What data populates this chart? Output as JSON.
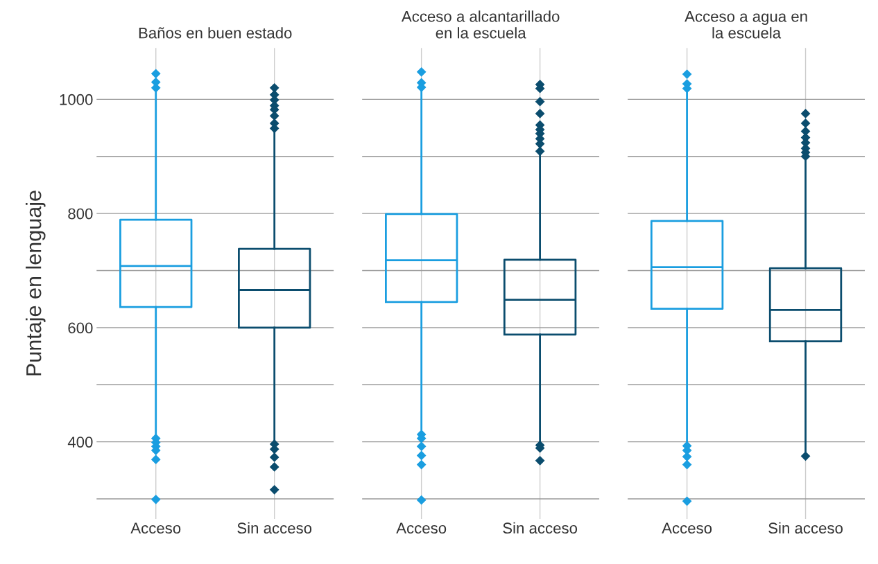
{
  "chart_data": [
    {
      "type": "box",
      "title": "Baños en buen estado",
      "ylabel": "Puntaje en lenguaje",
      "categories": [
        "Acceso",
        "Sin acceso"
      ],
      "colors": [
        "#1a9ee0",
        "#0b4d6e"
      ],
      "ylim": [
        265,
        1090
      ],
      "yticks": [
        {
          "value": 300,
          "label": null
        },
        400,
        {
          "value": 500,
          "label": null
        },
        600,
        {
          "value": 700,
          "label": null
        },
        800,
        {
          "value": 900,
          "label": null
        },
        1000
      ],
      "grid": true,
      "marker": "diamond",
      "boxes": [
        {
          "low": 400,
          "q1": 636,
          "median": 708,
          "q3": 789,
          "high": 1018,
          "outliers": [
            1045,
            1030,
            1020,
            406,
            399,
            392,
            385,
            369,
            299
          ]
        },
        {
          "low": 399,
          "q1": 600,
          "median": 666,
          "q3": 738,
          "high": 945,
          "outliers": [
            1020,
            1008,
            999,
            989,
            982,
            971,
            958,
            949,
            396,
            387,
            373,
            356,
            316
          ]
        }
      ]
    },
    {
      "type": "box",
      "title": "Acceso a alcantarillado\nen la escuela",
      "categories": [
        "Acceso",
        "Sin acceso"
      ],
      "colors": [
        "#1a9ee0",
        "#0b4d6e"
      ],
      "ylim": [
        265,
        1090
      ],
      "yticks": [
        {
          "value": 300,
          "label": null
        },
        400,
        {
          "value": 500,
          "label": null
        },
        600,
        {
          "value": 700,
          "label": null
        },
        800,
        {
          "value": 900,
          "label": null
        },
        1000
      ],
      "grid": true,
      "marker": "diamond",
      "tick_labels": "x",
      "boxes": [
        {
          "low": 422,
          "q1": 645,
          "median": 718,
          "q3": 799,
          "high": 1018,
          "outliers": [
            1048,
            1029,
            1021,
            413,
            406,
            392,
            376,
            360,
            298
          ]
        },
        {
          "low": 396,
          "q1": 588,
          "median": 649,
          "q3": 719,
          "high": 907,
          "outliers": [
            1026,
            1019,
            996,
            975,
            955,
            947,
            940,
            931,
            922,
            909,
            394,
            389,
            367
          ]
        }
      ]
    },
    {
      "type": "box",
      "title": "Acceso a agua en\nla escuela",
      "categories": [
        "Acceso",
        "Sin acceso"
      ],
      "colors": [
        "#1a9ee0",
        "#0b4d6e"
      ],
      "ylim": [
        265,
        1090
      ],
      "yticks": [
        {
          "value": 300,
          "label": null
        },
        400,
        {
          "value": 500,
          "label": null
        },
        600,
        {
          "value": 700,
          "label": null
        },
        800,
        {
          "value": 900,
          "label": null
        },
        1000
      ],
      "grid": true,
      "marker": "diamond",
      "tick_labels": "x",
      "boxes": [
        {
          "low": 400,
          "q1": 633,
          "median": 706,
          "q3": 787,
          "high": 1017,
          "outliers": [
            1044,
            1027,
            1019,
            393,
            385,
            374,
            360,
            296
          ]
        },
        {
          "low": 378,
          "q1": 576,
          "median": 631,
          "q3": 704,
          "high": 898,
          "outliers": [
            975,
            958,
            944,
            933,
            924,
            914,
            907,
            900,
            375
          ]
        }
      ]
    }
  ]
}
